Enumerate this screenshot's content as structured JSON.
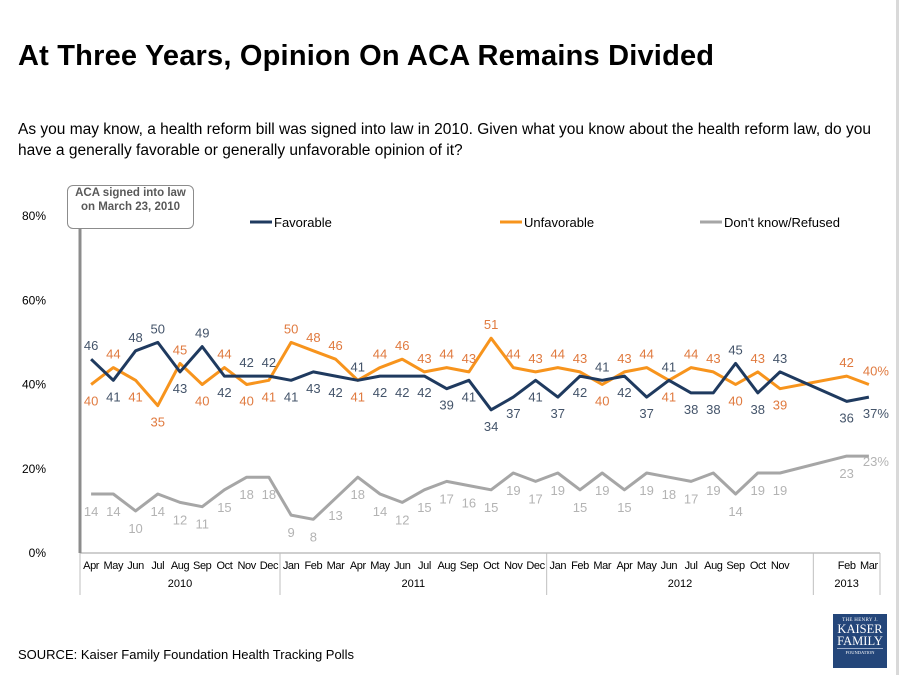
{
  "title": "At Three Years, Opinion On ACA Remains Divided",
  "question": "As you may know, a health reform bill was signed into law in 2010. Given what you know about the health reform law, do you have a generally favorable or generally unfavorable opinion of it?",
  "source": "SOURCE: Kaiser Family Foundation Health Tracking Polls",
  "logo": {
    "line1": "THE HENRY J.",
    "line2": "KAISER",
    "line3": "FAMILY",
    "line4": "FOUNDATION"
  },
  "chart_data": {
    "type": "line",
    "annotation": "ACA signed into law on March 23, 2010",
    "ylim": [
      0,
      80
    ],
    "yticks": [
      "0%",
      "20%",
      "40%",
      "60%",
      "80%"
    ],
    "grid": false,
    "legend_placement": "top",
    "categories": [
      "Apr",
      "May",
      "Jun",
      "Jul",
      "Aug",
      "Sep",
      "Oct",
      "Nov",
      "Dec",
      "Jan",
      "Feb",
      "Mar",
      "Apr",
      "May",
      "Jun",
      "Jul",
      "Aug",
      "Sep",
      "Oct",
      "Nov",
      "Dec",
      "Jan",
      "Feb",
      "Mar",
      "Apr",
      "May",
      "Jun",
      "Jul",
      "Aug",
      "Sep",
      "Oct",
      "Nov",
      "",
      "",
      "Feb",
      "Mar"
    ],
    "years": [
      {
        "label": "2010",
        "start": 0,
        "end": 8
      },
      {
        "label": "2011",
        "start": 9,
        "end": 20
      },
      {
        "label": "2012",
        "start": 21,
        "end": 32
      },
      {
        "label": "2013",
        "start": 33,
        "end": 35
      }
    ],
    "series": [
      {
        "name": "Favorable",
        "color": "#1f3a5f",
        "label_color": "#44546a",
        "values": [
          46,
          41,
          48,
          50,
          43,
          49,
          42,
          42,
          42,
          41,
          43,
          42,
          41,
          42,
          42,
          42,
          39,
          41,
          34,
          37,
          41,
          37,
          42,
          41,
          42,
          37,
          41,
          38,
          38,
          45,
          38,
          43,
          null,
          null,
          36,
          37
        ]
      },
      {
        "name": "Unfavorable",
        "color": "#f7941d",
        "label_color": "#e07a3f",
        "values": [
          40,
          44,
          41,
          35,
          45,
          40,
          44,
          40,
          41,
          50,
          48,
          46,
          41,
          44,
          46,
          43,
          44,
          43,
          51,
          44,
          43,
          44,
          43,
          40,
          43,
          44,
          41,
          44,
          43,
          40,
          43,
          39,
          null,
          null,
          42,
          40
        ]
      },
      {
        "name": "Don't know/Refused",
        "color": "#a6a6a6",
        "label_color": "#b3b3b3",
        "values": [
          14,
          14,
          10,
          14,
          12,
          11,
          15,
          18,
          18,
          9,
          8,
          13,
          18,
          14,
          12,
          15,
          17,
          16,
          15,
          19,
          17,
          19,
          15,
          19,
          15,
          19,
          18,
          17,
          19,
          14,
          19,
          19,
          null,
          null,
          23,
          23
        ]
      }
    ]
  }
}
